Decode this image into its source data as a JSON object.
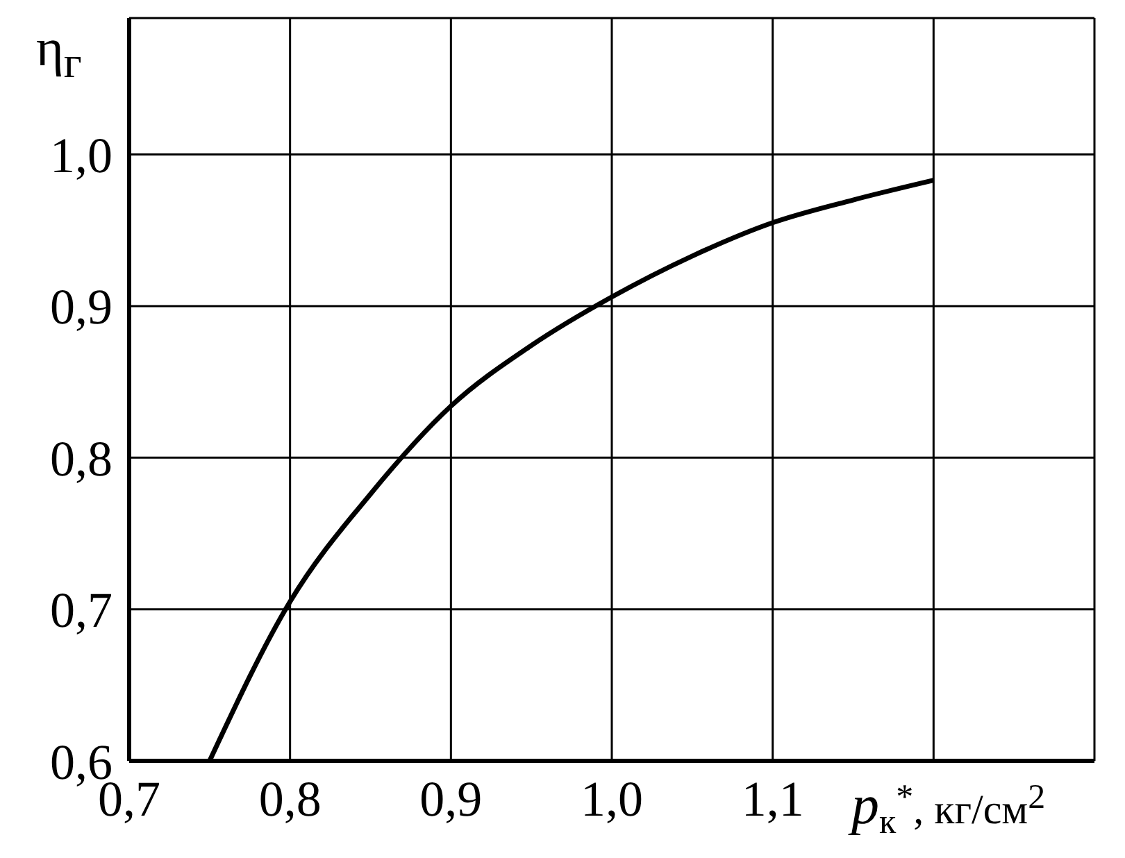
{
  "chart_data": {
    "type": "line",
    "xlabel": "p$_{к}$$^{*}$, кг/см$^{2}$",
    "ylabel": "η$_{г}$",
    "x": [
      0.75,
      0.8,
      0.85,
      0.9,
      0.95,
      1.0,
      1.05,
      1.1,
      1.15,
      1.2
    ],
    "series": [
      {
        "color": "#000000",
        "values": [
          0.6,
          0.705,
          0.776,
          0.834,
          0.874,
          0.906,
          0.933,
          0.955,
          0.97,
          0.983
        ]
      }
    ],
    "xlim": [
      0.7,
      1.3
    ],
    "xticks": [
      {
        "value": 0.7,
        "label": "0,7"
      },
      {
        "value": 0.8,
        "label": "0,8"
      },
      {
        "value": 0.9,
        "label": "0,9"
      },
      {
        "value": 1.0,
        "label": "1,0"
      },
      {
        "value": 1.1,
        "label": "1,1"
      },
      {
        "value": 1.2,
        "label": null
      }
    ],
    "ylim": [
      0.6,
      1.09
    ],
    "yticks": [
      {
        "value": 0.6,
        "label": "0,6"
      },
      {
        "value": 0.7,
        "label": "0,7"
      },
      {
        "value": 0.8,
        "label": "0,8"
      },
      {
        "value": 0.9,
        "label": "0,9"
      },
      {
        "value": 1.0,
        "label": "1,0"
      }
    ],
    "grid": true,
    "legend": false
  }
}
